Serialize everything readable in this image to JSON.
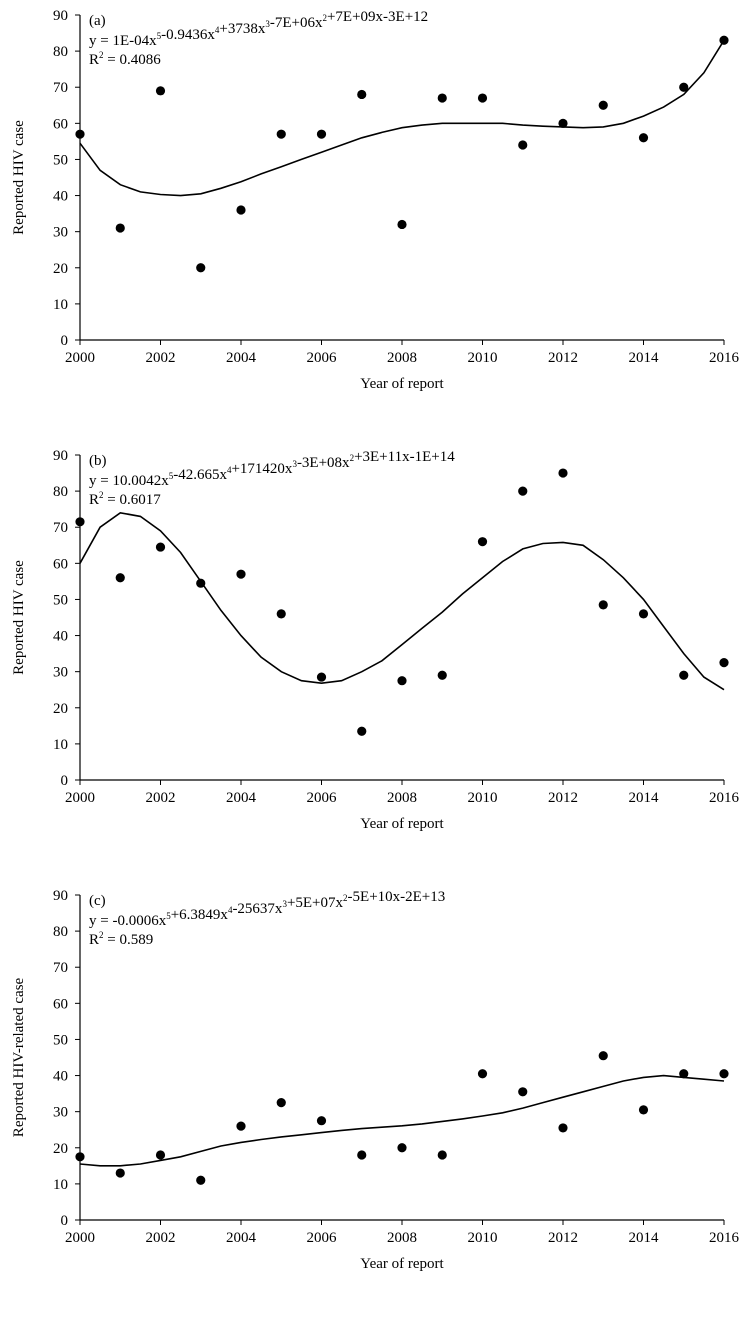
{
  "chart_data": [
    {
      "type": "scatter",
      "panel_label": "(a)",
      "equation": {
        "parts": [
          {
            "t": "y = 1E-04x"
          },
          {
            "s": "5"
          },
          {
            "t": "-0.9436x"
          },
          {
            "s": "4"
          },
          {
            "t": "+3738x"
          },
          {
            "s": "3"
          },
          {
            "t": "-7E+06x"
          },
          {
            "s": "2"
          },
          {
            "t": "+7E+09x-3E+12"
          }
        ]
      },
      "r2": {
        "prefix": "R",
        "sup": "2",
        "suffix": " = 0.4086"
      },
      "xlabel": "Year of report",
      "ylabel": "Reported HIV case",
      "xlim": [
        2000,
        2016
      ],
      "ylim": [
        0,
        90
      ],
      "xticks": [
        "2000",
        "2002",
        "2004",
        "2006",
        "2008",
        "2010",
        "2012",
        "2014",
        "2016"
      ],
      "yticks": [
        "0",
        "10",
        "20",
        "30",
        "40",
        "50",
        "60",
        "70",
        "80",
        "90"
      ],
      "x": [
        2000,
        2001,
        2002,
        2003,
        2004,
        2005,
        2006,
        2007,
        2008,
        2009,
        2010,
        2011,
        2012,
        2013,
        2014,
        2015,
        2016
      ],
      "y": [
        57,
        31,
        69,
        20,
        36,
        57,
        57,
        68,
        32,
        67,
        67,
        54,
        60,
        65,
        56,
        70,
        83
      ],
      "trend": {
        "x": [
          2000,
          2000.5,
          2001,
          2001.5,
          2002,
          2002.5,
          2003,
          2003.5,
          2004,
          2004.5,
          2005,
          2005.5,
          2006,
          2006.5,
          2007,
          2007.5,
          2008,
          2008.5,
          2009,
          2009.5,
          2010,
          2010.5,
          2011,
          2011.5,
          2012,
          2012.5,
          2013,
          2013.5,
          2014,
          2014.5,
          2015,
          2015.5,
          2016
        ],
        "y": [
          54.5,
          47,
          43,
          41,
          40.3,
          40,
          40.5,
          42,
          43.8,
          46,
          48,
          50,
          52,
          54,
          56,
          57.5,
          58.8,
          59.5,
          60,
          60,
          60,
          60,
          59.5,
          59.2,
          59,
          58.8,
          59,
          60,
          62,
          64.5,
          68,
          74,
          83
        ]
      }
    },
    {
      "type": "scatter",
      "panel_label": "(b)",
      "equation": {
        "parts": [
          {
            "t": "y = 10.0042x"
          },
          {
            "s": "5"
          },
          {
            "t": "-42.665x"
          },
          {
            "s": "4"
          },
          {
            "t": "+171420x"
          },
          {
            "s": "3"
          },
          {
            "t": "-3E+08x"
          },
          {
            "s": "2"
          },
          {
            "t": "+3E+11x-1E+14"
          }
        ]
      },
      "r2": {
        "prefix": "R",
        "sup": "2",
        "suffix": " = 0.6017"
      },
      "xlabel": "Year of report",
      "ylabel": "Reported HIV case",
      "xlim": [
        2000,
        2016
      ],
      "ylim": [
        0,
        90
      ],
      "xticks": [
        "2000",
        "2002",
        "2004",
        "2006",
        "2008",
        "2010",
        "2012",
        "2014",
        "2016"
      ],
      "yticks": [
        "0",
        "10",
        "20",
        "30",
        "40",
        "50",
        "60",
        "70",
        "80",
        "90"
      ],
      "x": [
        2000,
        2001,
        2002,
        2003,
        2004,
        2005,
        2006,
        2007,
        2008,
        2009,
        2010,
        2011,
        2012,
        2013,
        2014,
        2015,
        2016
      ],
      "y": [
        71.5,
        56,
        64.5,
        54.5,
        57,
        46,
        28.5,
        13.5,
        27.5,
        29,
        66,
        80,
        85,
        48.5,
        46,
        29,
        32.5
      ],
      "trend": {
        "x": [
          2000,
          2000.5,
          2001,
          2001.5,
          2002,
          2002.5,
          2003,
          2003.5,
          2004,
          2004.5,
          2005,
          2005.5,
          2006,
          2006.5,
          2007,
          2007.5,
          2008,
          2008.5,
          2009,
          2009.5,
          2010,
          2010.5,
          2011,
          2011.5,
          2012,
          2012.5,
          2013,
          2013.5,
          2014,
          2014.5,
          2015,
          2015.5,
          2016
        ],
        "y": [
          60,
          70,
          74,
          73,
          69,
          63,
          55,
          47,
          40,
          34,
          30,
          27.5,
          26.8,
          27.5,
          30,
          33,
          37.5,
          42,
          46.5,
          51.5,
          56,
          60.5,
          64,
          65.5,
          65.8,
          65,
          61,
          56,
          50,
          42.5,
          35,
          28.5,
          25
        ]
      }
    },
    {
      "type": "scatter",
      "panel_label": "(c)",
      "equation": {
        "parts": [
          {
            "t": "y  = -0.0006x"
          },
          {
            "s": "5"
          },
          {
            "t": "+6.3849x"
          },
          {
            "s": "4"
          },
          {
            "t": "-25637x"
          },
          {
            "s": "3"
          },
          {
            "t": "+5E+07x"
          },
          {
            "s": "2"
          },
          {
            "t": "-5E+10x-2E+13"
          }
        ]
      },
      "r2": {
        "prefix": "R",
        "sup": "2",
        "suffix": " = 0.589"
      },
      "xlabel": "Year of report",
      "ylabel": "Reported HIV-related case",
      "xlim": [
        2000,
        2016
      ],
      "ylim": [
        0,
        90
      ],
      "xticks": [
        "2000",
        "2002",
        "2004",
        "2006",
        "2008",
        "2010",
        "2012",
        "2014",
        "2016"
      ],
      "yticks": [
        "0",
        "10",
        "20",
        "30",
        "40",
        "50",
        "60",
        "70",
        "80",
        "90"
      ],
      "x": [
        2000,
        2001,
        2002,
        2003,
        2004,
        2005,
        2006,
        2007,
        2008,
        2009,
        2010,
        2011,
        2012,
        2013,
        2014,
        2015,
        2016
      ],
      "y": [
        17.5,
        13,
        18,
        11,
        26,
        32.5,
        27.5,
        18,
        20,
        18,
        40.5,
        35.5,
        25.5,
        45.5,
        30.5,
        40.5,
        40.5
      ],
      "trend": {
        "x": [
          2000,
          2000.5,
          2001,
          2001.5,
          2002,
          2002.5,
          2003,
          2003.5,
          2004,
          2004.5,
          2005,
          2005.5,
          2006,
          2006.5,
          2007,
          2007.5,
          2008,
          2008.5,
          2009,
          2009.5,
          2010,
          2010.5,
          2011,
          2011.5,
          2012,
          2012.5,
          2013,
          2013.5,
          2014,
          2014.5,
          2015,
          2015.5,
          2016
        ],
        "y": [
          15.5,
          15,
          15,
          15.5,
          16.5,
          17.5,
          19,
          20.5,
          21.5,
          22.3,
          23,
          23.6,
          24.2,
          24.8,
          25.3,
          25.7,
          26.1,
          26.6,
          27.3,
          28,
          28.8,
          29.7,
          31,
          32.5,
          34,
          35.5,
          37,
          38.5,
          39.5,
          40,
          39.5,
          39,
          38.5
        ]
      }
    }
  ]
}
